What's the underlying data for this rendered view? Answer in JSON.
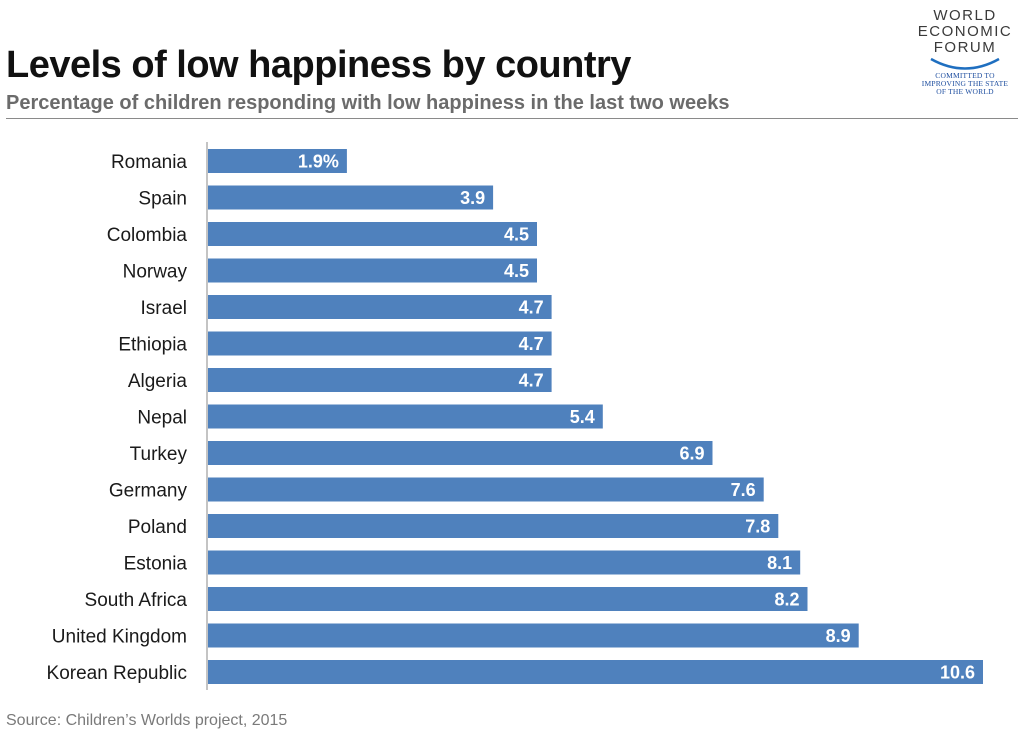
{
  "header": {
    "title": "Levels of low happiness by country",
    "subtitle": "Percentage of children responding with low happiness in the last two weeks"
  },
  "logo": {
    "line1": "WORLD",
    "line2": "ECONOMIC",
    "line3": "FORUM",
    "tag1": "COMMITTED TO",
    "tag2": "IMPROVING THE STATE",
    "tag3": "OF THE WORLD"
  },
  "footer": {
    "source": "Source: Children’s Worlds project, 2015"
  },
  "colors": {
    "bar": "#4f81bd",
    "axis": "#8a8a8a"
  },
  "chart_data": {
    "type": "bar",
    "orientation": "horizontal",
    "title": "Levels of low happiness by country",
    "subtitle": "Percentage of children responding with low happiness in the last two weeks",
    "xlabel": "",
    "ylabel": "",
    "xlim": [
      0,
      10.6
    ],
    "grid": false,
    "categories": [
      "Romania",
      "Spain",
      "Colombia",
      "Norway",
      "Israel",
      "Ethiopia",
      "Algeria",
      "Nepal",
      "Turkey",
      "Germany",
      "Poland",
      "Estonia",
      "South Africa",
      "United Kingdom",
      "Korean Republic"
    ],
    "values": [
      1.9,
      3.9,
      4.5,
      4.5,
      4.7,
      4.7,
      4.7,
      5.4,
      6.9,
      7.6,
      7.8,
      8.1,
      8.2,
      8.9,
      10.6
    ],
    "data_labels": [
      "1.9%",
      "3.9",
      "4.5",
      "4.5",
      "4.7",
      "4.7",
      "4.7",
      "5.4",
      "6.9",
      "7.6",
      "7.8",
      "8.1",
      "8.2",
      "8.9",
      "10.6"
    ]
  }
}
